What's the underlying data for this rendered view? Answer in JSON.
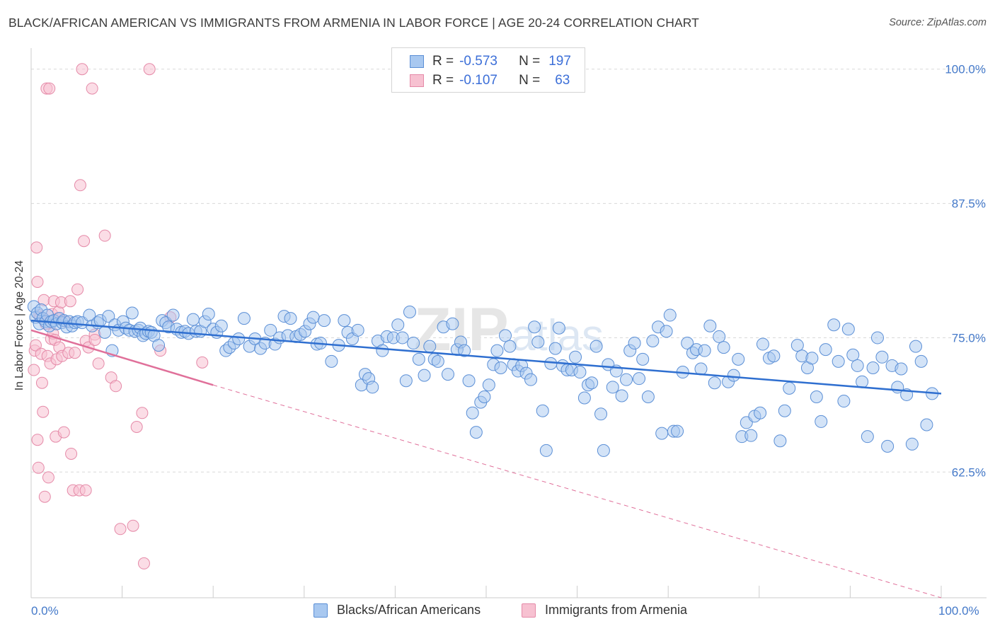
{
  "header": {
    "title": "BLACK/AFRICAN AMERICAN VS IMMIGRANTS FROM ARMENIA IN LABOR FORCE | AGE 20-24 CORRELATION CHART",
    "source": "Source: ZipAtlas.com"
  },
  "legend": {
    "series1": {
      "r_label": "R =",
      "r_value": "-0.573",
      "n_label": "N =",
      "n_value": "197"
    },
    "series2": {
      "r_label": "R =",
      "r_value": "-0.107",
      "n_label": "N =",
      "n_value": "63"
    }
  },
  "bottom_legend": {
    "series1": "Blacks/African Americans",
    "series2": "Immigrants from Armenia"
  },
  "colors": {
    "blue_fill": "#a8c8f0",
    "blue_stroke": "#5b8fd6",
    "blue_line": "#2f6fd0",
    "pink_fill": "#f7c1d1",
    "pink_stroke": "#e58aa8",
    "pink_line": "#e0709a",
    "tick_text": "#4479c9",
    "grid": "#d8d8d8",
    "axis": "#cccccc"
  },
  "chart_data": {
    "type": "scatter",
    "title": "BLACK/AFRICAN AMERICAN VS IMMIGRANTS FROM ARMENIA IN LABOR FORCE | AGE 20-24 CORRELATION CHART",
    "xlabel": "",
    "ylabel": "In Labor Force | Age 20-24",
    "xlim": [
      0,
      100
    ],
    "ylim": [
      50.8,
      101.3
    ],
    "x_tick_labels": [
      "0.0%",
      "100.0%"
    ],
    "y_ticks": [
      62.5,
      75.0,
      87.5,
      100.0
    ],
    "y_tick_labels": [
      "62.5%",
      "75.0%",
      "87.5%",
      "100.0%"
    ],
    "grid": true,
    "legend_position": "top-center",
    "watermark": "ZIPatlas",
    "series": [
      {
        "name": "Blacks/African Americans",
        "r": -0.573,
        "n": 197,
        "trend": {
          "x": [
            0,
            100
          ],
          "y": [
            76.6,
            69.8
          ]
        },
        "points": [
          [
            0.3,
            77.9
          ],
          [
            0.5,
            76.9
          ],
          [
            0.7,
            77.3
          ],
          [
            0.9,
            76.3
          ],
          [
            1.1,
            77.6
          ],
          [
            1.3,
            76.8
          ],
          [
            1.6,
            76.5
          ],
          [
            1.8,
            77.1
          ],
          [
            2.0,
            76.1
          ],
          [
            2.2,
            76.5
          ],
          [
            2.5,
            76.6
          ],
          [
            2.8,
            76.3
          ],
          [
            3.1,
            76.8
          ],
          [
            3.4,
            76.4
          ],
          [
            3.6,
            76.6
          ],
          [
            3.9,
            76.0
          ],
          [
            4.2,
            76.5
          ],
          [
            4.5,
            76.1
          ],
          [
            4.8,
            76.4
          ],
          [
            5.1,
            76.5
          ],
          [
            5.6,
            76.4
          ],
          [
            6.4,
            77.1
          ],
          [
            6.7,
            76.1
          ],
          [
            7.3,
            76.4
          ],
          [
            7.6,
            76.6
          ],
          [
            8.1,
            75.5
          ],
          [
            8.5,
            77.0
          ],
          [
            8.9,
            73.8
          ],
          [
            9.2,
            76.2
          ],
          [
            9.6,
            75.7
          ],
          [
            10.1,
            76.5
          ],
          [
            10.4,
            75.9
          ],
          [
            10.8,
            75.7
          ],
          [
            11.1,
            77.3
          ],
          [
            11.4,
            75.6
          ],
          [
            11.8,
            75.7
          ],
          [
            12.0,
            75.9
          ],
          [
            12.3,
            75.2
          ],
          [
            12.6,
            75.4
          ],
          [
            12.9,
            75.6
          ],
          [
            13.2,
            75.5
          ],
          [
            13.5,
            75.2
          ],
          [
            14.0,
            74.3
          ],
          [
            14.4,
            76.6
          ],
          [
            14.8,
            76.4
          ],
          [
            15.1,
            76.0
          ],
          [
            15.6,
            77.1
          ],
          [
            16.0,
            75.8
          ],
          [
            16.5,
            75.5
          ],
          [
            16.9,
            75.6
          ],
          [
            17.3,
            75.4
          ],
          [
            17.8,
            76.7
          ],
          [
            18.1,
            75.6
          ],
          [
            18.6,
            75.6
          ],
          [
            19.1,
            76.5
          ],
          [
            19.5,
            77.2
          ],
          [
            20.0,
            75.8
          ],
          [
            20.4,
            75.5
          ],
          [
            20.9,
            76.1
          ],
          [
            21.4,
            73.8
          ],
          [
            21.8,
            74.1
          ],
          [
            22.3,
            74.5
          ],
          [
            22.8,
            74.9
          ],
          [
            23.4,
            76.8
          ],
          [
            24.0,
            74.2
          ],
          [
            24.6,
            74.9
          ],
          [
            25.2,
            74.0
          ],
          [
            25.7,
            74.5
          ],
          [
            26.3,
            75.7
          ],
          [
            26.8,
            74.4
          ],
          [
            27.3,
            75.0
          ],
          [
            27.8,
            77.0
          ],
          [
            28.2,
            75.2
          ],
          [
            28.5,
            76.8
          ],
          [
            29.1,
            75.1
          ],
          [
            29.6,
            75.3
          ],
          [
            30.1,
            75.6
          ],
          [
            30.6,
            76.3
          ],
          [
            31.0,
            76.9
          ],
          [
            31.4,
            74.4
          ],
          [
            31.8,
            74.5
          ],
          [
            32.2,
            76.6
          ],
          [
            33.0,
            72.8
          ],
          [
            33.8,
            74.3
          ],
          [
            34.4,
            76.6
          ],
          [
            34.8,
            75.5
          ],
          [
            35.3,
            74.9
          ],
          [
            35.9,
            75.7
          ],
          [
            36.3,
            70.6
          ],
          [
            36.7,
            71.6
          ],
          [
            37.1,
            71.2
          ],
          [
            37.5,
            70.4
          ],
          [
            38.1,
            74.7
          ],
          [
            38.6,
            73.8
          ],
          [
            39.1,
            75.1
          ],
          [
            39.8,
            75.0
          ],
          [
            40.3,
            76.2
          ],
          [
            40.8,
            75.0
          ],
          [
            41.2,
            71.0
          ],
          [
            41.6,
            77.4
          ],
          [
            42.0,
            74.5
          ],
          [
            42.6,
            73.0
          ],
          [
            43.2,
            71.5
          ],
          [
            43.8,
            74.2
          ],
          [
            44.3,
            73.0
          ],
          [
            44.7,
            72.8
          ],
          [
            45.3,
            76.0
          ],
          [
            45.8,
            71.6
          ],
          [
            46.3,
            76.3
          ],
          [
            46.8,
            73.9
          ],
          [
            47.2,
            74.6
          ],
          [
            47.6,
            73.8
          ],
          [
            48.1,
            71.0
          ],
          [
            48.5,
            68.0
          ],
          [
            48.9,
            66.2
          ],
          [
            49.4,
            69.0
          ],
          [
            49.8,
            69.5
          ],
          [
            50.3,
            70.6
          ],
          [
            50.8,
            72.5
          ],
          [
            51.2,
            73.8
          ],
          [
            51.6,
            72.2
          ],
          [
            52.1,
            75.2
          ],
          [
            52.6,
            74.2
          ],
          [
            53.0,
            72.5
          ],
          [
            53.5,
            71.9
          ],
          [
            53.9,
            72.4
          ],
          [
            54.4,
            71.7
          ],
          [
            54.9,
            71.1
          ],
          [
            55.3,
            76.0
          ],
          [
            55.7,
            74.6
          ],
          [
            56.2,
            68.2
          ],
          [
            56.6,
            64.5
          ],
          [
            57.1,
            72.6
          ],
          [
            57.6,
            74.0
          ],
          [
            58.0,
            75.9
          ],
          [
            58.4,
            72.4
          ],
          [
            58.9,
            72.0
          ],
          [
            59.4,
            72.0
          ],
          [
            59.8,
            73.2
          ],
          [
            60.3,
            71.8
          ],
          [
            60.8,
            69.4
          ],
          [
            61.2,
            70.6
          ],
          [
            61.6,
            70.8
          ],
          [
            62.1,
            74.2
          ],
          [
            62.6,
            67.9
          ],
          [
            62.9,
            64.5
          ],
          [
            63.4,
            72.5
          ],
          [
            63.9,
            70.4
          ],
          [
            64.3,
            71.9
          ],
          [
            64.9,
            69.6
          ],
          [
            65.4,
            71.1
          ],
          [
            65.8,
            73.8
          ],
          [
            66.3,
            74.5
          ],
          [
            66.8,
            71.2
          ],
          [
            67.2,
            73.0
          ],
          [
            67.8,
            69.5
          ],
          [
            68.3,
            74.7
          ],
          [
            68.9,
            76.0
          ],
          [
            69.3,
            66.1
          ],
          [
            69.8,
            75.6
          ],
          [
            70.2,
            77.1
          ],
          [
            70.6,
            66.3
          ],
          [
            71.0,
            66.3
          ],
          [
            71.6,
            71.8
          ],
          [
            72.1,
            74.5
          ],
          [
            72.7,
            73.6
          ],
          [
            73.1,
            73.9
          ],
          [
            73.6,
            72.1
          ],
          [
            74.0,
            73.8
          ],
          [
            74.6,
            76.1
          ],
          [
            75.1,
            70.8
          ],
          [
            75.6,
            75.1
          ],
          [
            76.1,
            74.1
          ],
          [
            76.6,
            70.9
          ],
          [
            77.2,
            71.5
          ],
          [
            77.7,
            73.0
          ],
          [
            78.1,
            65.8
          ],
          [
            78.6,
            67.1
          ],
          [
            79.1,
            65.9
          ],
          [
            79.5,
            67.7
          ],
          [
            80.1,
            68.0
          ],
          [
            80.4,
            74.4
          ],
          [
            81.1,
            73.1
          ],
          [
            81.6,
            73.3
          ],
          [
            82.3,
            65.4
          ],
          [
            82.8,
            68.2
          ],
          [
            83.3,
            70.3
          ],
          [
            84.2,
            74.3
          ],
          [
            84.7,
            73.3
          ],
          [
            85.3,
            72.2
          ],
          [
            85.8,
            73.1
          ],
          [
            86.3,
            69.5
          ],
          [
            86.8,
            67.2
          ],
          [
            87.3,
            73.9
          ],
          [
            88.2,
            76.2
          ],
          [
            88.7,
            72.8
          ],
          [
            89.3,
            69.1
          ],
          [
            89.8,
            75.8
          ],
          [
            90.3,
            73.4
          ],
          [
            90.8,
            72.4
          ],
          [
            91.3,
            70.9
          ],
          [
            91.9,
            65.8
          ],
          [
            92.5,
            72.2
          ],
          [
            93.0,
            75.0
          ],
          [
            93.5,
            73.2
          ],
          [
            94.1,
            64.9
          ],
          [
            94.6,
            72.4
          ],
          [
            95.2,
            70.4
          ],
          [
            95.6,
            72.1
          ],
          [
            96.2,
            69.7
          ],
          [
            96.8,
            65.1
          ],
          [
            97.2,
            74.2
          ],
          [
            97.8,
            72.8
          ],
          [
            98.4,
            66.9
          ],
          [
            99.0,
            69.8
          ]
        ]
      },
      {
        "name": "Immigrants from Armenia",
        "r": -0.107,
        "n": 63,
        "trend": {
          "x": [
            0,
            20
          ],
          "y": [
            75.7,
            70.6
          ],
          "dashed_extension_to": [
            100,
            50.8
          ]
        },
        "points": [
          [
            0.3,
            72.0
          ],
          [
            0.4,
            73.8
          ],
          [
            0.5,
            74.3
          ],
          [
            0.6,
            83.4
          ],
          [
            0.7,
            80.2
          ],
          [
            0.7,
            65.5
          ],
          [
            0.8,
            62.9
          ],
          [
            0.9,
            77.1
          ],
          [
            1.0,
            76.9
          ],
          [
            1.1,
            73.5
          ],
          [
            1.2,
            70.8
          ],
          [
            1.3,
            68.1
          ],
          [
            1.4,
            78.5
          ],
          [
            1.5,
            60.2
          ],
          [
            1.6,
            76.3
          ],
          [
            1.7,
            98.2
          ],
          [
            1.8,
            73.3
          ],
          [
            1.9,
            62.0
          ],
          [
            2.0,
            98.2
          ],
          [
            2.1,
            72.6
          ],
          [
            2.2,
            74.9
          ],
          [
            2.3,
            77.2
          ],
          [
            2.4,
            75.4
          ],
          [
            2.5,
            78.4
          ],
          [
            2.6,
            74.8
          ],
          [
            2.7,
            65.8
          ],
          [
            2.8,
            73.0
          ],
          [
            2.9,
            76.8
          ],
          [
            3.0,
            77.4
          ],
          [
            3.1,
            74.1
          ],
          [
            3.3,
            78.3
          ],
          [
            3.4,
            73.3
          ],
          [
            3.6,
            66.2
          ],
          [
            3.8,
            76.5
          ],
          [
            4.1,
            73.6
          ],
          [
            4.3,
            78.4
          ],
          [
            4.4,
            64.2
          ],
          [
            4.6,
            60.8
          ],
          [
            4.8,
            73.6
          ],
          [
            5.1,
            79.5
          ],
          [
            5.3,
            60.8
          ],
          [
            5.4,
            89.2
          ],
          [
            5.6,
            100.0
          ],
          [
            5.8,
            84.0
          ],
          [
            6.0,
            74.7
          ],
          [
            6.0,
            60.8
          ],
          [
            6.3,
            74.1
          ],
          [
            6.7,
            98.2
          ],
          [
            7.0,
            75.3
          ],
          [
            7.0,
            74.8
          ],
          [
            7.4,
            72.6
          ],
          [
            8.1,
            84.5
          ],
          [
            8.8,
            71.3
          ],
          [
            9.3,
            70.5
          ],
          [
            9.8,
            57.2
          ],
          [
            11.2,
            57.5
          ],
          [
            11.6,
            66.7
          ],
          [
            12.2,
            68.0
          ],
          [
            12.4,
            54.0
          ],
          [
            13.0,
            100.0
          ],
          [
            14.2,
            73.8
          ],
          [
            15.3,
            76.9
          ],
          [
            18.8,
            72.7
          ]
        ]
      }
    ]
  }
}
